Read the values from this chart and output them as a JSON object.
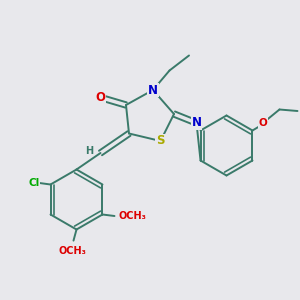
{
  "bg_color": "#e8e8ec",
  "bond_color": "#3a7a6a",
  "bond_width": 1.4,
  "atom_colors": {
    "O": "#dd0000",
    "N": "#0000cc",
    "S": "#aaaa00",
    "Cl": "#00aa00",
    "C": "#3a7a6a",
    "H": "#3a7a6a"
  },
  "fs_large": 8.5,
  "fs_med": 7.5,
  "fs_small": 7.0
}
